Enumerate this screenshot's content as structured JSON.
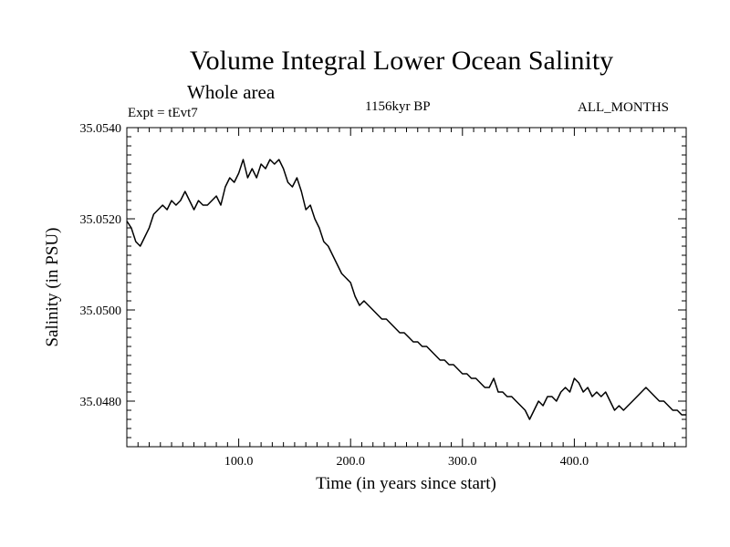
{
  "colors": {
    "line": "#000000",
    "axis": "#000000",
    "background": "#ffffff"
  },
  "chart_data": {
    "type": "line",
    "title": "Volume Integral Lower Ocean Salinity",
    "subtitle": "Whole area",
    "experiment_label": "Expt = tEvt7",
    "period_label": "1156kyr BP",
    "months_label": "ALL_MONTHS",
    "xlabel": "Time (in years since start)",
    "ylabel": "Salinity (in PSU)",
    "xlim": [
      0,
      500
    ],
    "ylim": [
      35.047,
      35.054
    ],
    "x_major_ticks": [
      100,
      200,
      300,
      400
    ],
    "x_tick_labels": [
      "100.0",
      "200.0",
      "300.0",
      "400.0"
    ],
    "y_major_ticks": [
      35.048,
      35.05,
      35.052,
      35.054
    ],
    "y_tick_labels": [
      "35.0480",
      "35.0500",
      "35.0520",
      "35.0540"
    ],
    "grid": false,
    "series": [
      {
        "name": "Salinity",
        "x": [
          0,
          4,
          8,
          12,
          16,
          20,
          24,
          28,
          32,
          36,
          40,
          44,
          48,
          52,
          56,
          60,
          64,
          68,
          72,
          76,
          80,
          84,
          88,
          92,
          96,
          100,
          104,
          108,
          112,
          116,
          120,
          124,
          128,
          132,
          136,
          140,
          144,
          148,
          152,
          156,
          160,
          164,
          168,
          172,
          176,
          180,
          184,
          188,
          192,
          196,
          200,
          204,
          208,
          212,
          216,
          220,
          224,
          228,
          232,
          236,
          240,
          244,
          248,
          252,
          256,
          260,
          264,
          268,
          272,
          276,
          280,
          284,
          288,
          292,
          296,
          300,
          304,
          308,
          312,
          316,
          320,
          324,
          328,
          332,
          336,
          340,
          344,
          348,
          352,
          356,
          360,
          364,
          368,
          372,
          376,
          380,
          384,
          388,
          392,
          396,
          400,
          404,
          408,
          412,
          416,
          420,
          424,
          428,
          432,
          436,
          440,
          444,
          448,
          452,
          456,
          460,
          464,
          468,
          472,
          476,
          480,
          484,
          488,
          492,
          496,
          500
        ],
        "values": [
          35.05195,
          35.0518,
          35.0515,
          35.0514,
          35.0516,
          35.0518,
          35.0521,
          35.0522,
          35.0523,
          35.0522,
          35.0524,
          35.0523,
          35.0524,
          35.0526,
          35.0524,
          35.0522,
          35.0524,
          35.0523,
          35.0523,
          35.0524,
          35.0525,
          35.0523,
          35.0527,
          35.0529,
          35.0528,
          35.053,
          35.0533,
          35.0529,
          35.0531,
          35.0529,
          35.0532,
          35.0531,
          35.0533,
          35.0532,
          35.0533,
          35.0531,
          35.0528,
          35.0527,
          35.0529,
          35.0526,
          35.0522,
          35.0523,
          35.052,
          35.0518,
          35.0515,
          35.0514,
          35.0512,
          35.051,
          35.0508,
          35.0507,
          35.0506,
          35.0503,
          35.0501,
          35.0502,
          35.0501,
          35.05,
          35.0499,
          35.0498,
          35.0498,
          35.0497,
          35.0496,
          35.0495,
          35.0495,
          35.0494,
          35.0493,
          35.0493,
          35.0492,
          35.0492,
          35.0491,
          35.049,
          35.0489,
          35.0489,
          35.0488,
          35.0488,
          35.0487,
          35.0486,
          35.0486,
          35.0485,
          35.0485,
          35.0484,
          35.0483,
          35.0483,
          35.0485,
          35.0482,
          35.0482,
          35.0481,
          35.0481,
          35.048,
          35.0479,
          35.0478,
          35.0476,
          35.0478,
          35.048,
          35.0479,
          35.0481,
          35.0481,
          35.048,
          35.0482,
          35.0483,
          35.0482,
          35.0485,
          35.0484,
          35.0482,
          35.0483,
          35.0481,
          35.0482,
          35.0481,
          35.0482,
          35.048,
          35.0478,
          35.0479,
          35.0478,
          35.0479,
          35.048,
          35.0481,
          35.0482,
          35.0483,
          35.0482,
          35.0481,
          35.048,
          35.048,
          35.0479,
          35.0478,
          35.0478,
          35.0477,
          35.0477
        ]
      }
    ]
  }
}
